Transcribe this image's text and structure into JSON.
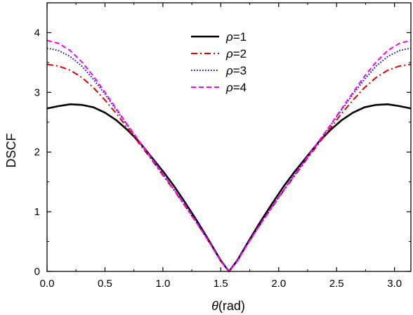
{
  "chart_data": {
    "type": "line",
    "xlabel_symbol": "θ",
    "xlabel_unit": "(rad)",
    "ylabel": "DSCF",
    "xlim": [
      0,
      3.14159
    ],
    "ylim": [
      0,
      4.5
    ],
    "xticks": [
      "0.0",
      "0.5",
      "1.0",
      "1.5",
      "2.0",
      "2.5",
      "3.0"
    ],
    "xtick_values": [
      0,
      0.5,
      1.0,
      1.5,
      2.0,
      2.5,
      3.0
    ],
    "yticks": [
      "0",
      "1",
      "2",
      "3",
      "4"
    ],
    "ytick_values": [
      0,
      1,
      2,
      3,
      4
    ],
    "grid": false,
    "legend_position": "top-center",
    "x": [
      0,
      0.1,
      0.2,
      0.3,
      0.4,
      0.5,
      0.6,
      0.7,
      0.8,
      0.9,
      1.0,
      1.1,
      1.2,
      1.3,
      1.4,
      1.5,
      1.5708,
      1.6416,
      1.7416,
      1.8416,
      1.9416,
      2.0416,
      2.1416,
      2.2416,
      2.3416,
      2.4416,
      2.5416,
      2.6416,
      2.7416,
      2.8416,
      2.9416,
      3.0416,
      3.1416
    ],
    "series": [
      {
        "name": "ρ=1",
        "color": "#000000",
        "dash": "solid",
        "values": [
          2.73,
          2.77,
          2.8,
          2.79,
          2.75,
          2.66,
          2.53,
          2.36,
          2.16,
          1.92,
          1.68,
          1.42,
          1.13,
          0.83,
          0.51,
          0.18,
          0.0,
          0.18,
          0.51,
          0.83,
          1.13,
          1.42,
          1.68,
          1.92,
          2.16,
          2.36,
          2.53,
          2.66,
          2.75,
          2.79,
          2.8,
          2.77,
          2.73
        ]
      },
      {
        "name": "ρ=2",
        "color": "#e00000",
        "dash": "dashdot",
        "values": [
          3.47,
          3.44,
          3.37,
          3.25,
          3.08,
          2.87,
          2.64,
          2.39,
          2.13,
          1.88,
          1.61,
          1.35,
          1.07,
          0.79,
          0.49,
          0.17,
          0.0,
          0.17,
          0.49,
          0.79,
          1.07,
          1.35,
          1.61,
          1.88,
          2.13,
          2.39,
          2.64,
          2.87,
          3.08,
          3.25,
          3.37,
          3.44,
          3.47
        ]
      },
      {
        "name": "ρ=3",
        "color": "#1010d0",
        "dash": "dotted",
        "values": [
          3.74,
          3.7,
          3.6,
          3.44,
          3.22,
          2.97,
          2.7,
          2.43,
          2.16,
          1.89,
          1.63,
          1.36,
          1.08,
          0.79,
          0.49,
          0.17,
          0.0,
          0.17,
          0.49,
          0.79,
          1.08,
          1.36,
          1.63,
          1.89,
          2.16,
          2.43,
          2.7,
          2.97,
          3.22,
          3.44,
          3.6,
          3.7,
          3.74
        ]
      },
      {
        "name": "ρ=4",
        "color": "#ff00ff",
        "dash": "dashed",
        "values": [
          3.87,
          3.82,
          3.7,
          3.51,
          3.27,
          3.0,
          2.72,
          2.44,
          2.17,
          1.9,
          1.63,
          1.36,
          1.08,
          0.79,
          0.49,
          0.17,
          0.0,
          0.17,
          0.49,
          0.79,
          1.08,
          1.36,
          1.63,
          1.9,
          2.17,
          2.44,
          2.72,
          3.0,
          3.27,
          3.51,
          3.7,
          3.82,
          3.87
        ]
      }
    ]
  }
}
